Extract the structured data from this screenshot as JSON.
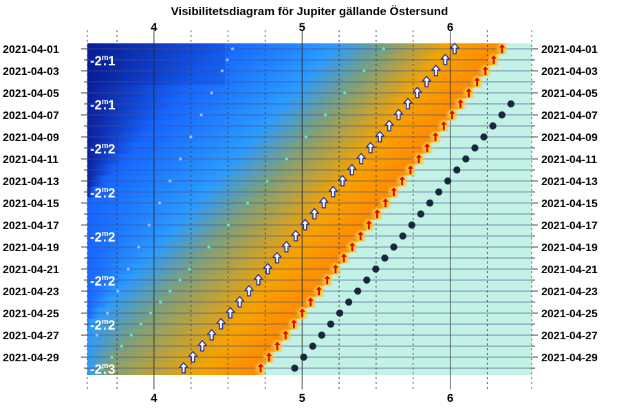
{
  "chart_data": {
    "type": "scatter",
    "title": "Visibilitetsdiagram för Jupiter gällande Östersund",
    "xlabel": "",
    "ylabel": "",
    "x_unit": "hours (local time)",
    "xlim": [
      3.55,
      6.55
    ],
    "x_ticks": [
      {
        "value": 4,
        "label": "4"
      },
      {
        "value": 5,
        "label": "5"
      },
      {
        "value": 6,
        "label": "6"
      }
    ],
    "minor_grid_hours": [
      3.75,
      4.25,
      4.5,
      4.75,
      5.25,
      5.5,
      5.75,
      6.25
    ],
    "dates": [
      "2021-04-01",
      "2021-04-02",
      "2021-04-03",
      "2021-04-04",
      "2021-04-05",
      "2021-04-06",
      "2021-04-07",
      "2021-04-08",
      "2021-04-09",
      "2021-04-10",
      "2021-04-11",
      "2021-04-12",
      "2021-04-13",
      "2021-04-14",
      "2021-04-15",
      "2021-04-16",
      "2021-04-17",
      "2021-04-18",
      "2021-04-19",
      "2021-04-20",
      "2021-04-21",
      "2021-04-22",
      "2021-04-23",
      "2021-04-24",
      "2021-04-25",
      "2021-04-26",
      "2021-04-27",
      "2021-04-28",
      "2021-04-29",
      "2021-04-30"
    ],
    "date_labels": [
      "2021-04-01",
      "2021-04-03",
      "2021-04-05",
      "2021-04-07",
      "2021-04-09",
      "2021-04-11",
      "2021-04-13",
      "2021-04-15",
      "2021-04-17",
      "2021-04-19",
      "2021-04-21",
      "2021-04-23",
      "2021-04-25",
      "2021-04-27",
      "2021-04-29"
    ],
    "magnitudes": [
      {
        "date": "2021-04-02",
        "text": "-2.1"
      },
      {
        "date": "2021-04-06",
        "text": "-2.1"
      },
      {
        "date": "2021-04-10",
        "text": "-2.2"
      },
      {
        "date": "2021-04-14",
        "text": "-2.2"
      },
      {
        "date": "2021-04-18",
        "text": "-2.2"
      },
      {
        "date": "2021-04-22",
        "text": "-2.2"
      },
      {
        "date": "2021-04-26",
        "text": "-2.2"
      },
      {
        "date": "2021-04-30",
        "text": "-2.3"
      }
    ],
    "series": [
      {
        "symbol": "dot-small",
        "x": [
          4.53,
          3.51
        ],
        "date_index": [
          0,
          29
        ]
      },
      {
        "symbol": "dot-cyan",
        "x": [
          5.55,
          3.65
        ],
        "date_index": [
          0,
          29
        ]
      },
      {
        "symbol": "arrow-white",
        "x": [
          6.03,
          4.2
        ],
        "date_index": [
          0,
          29
        ]
      },
      {
        "symbol": "arrow-red",
        "x": [
          6.35,
          4.72
        ],
        "date_index": [
          0,
          29
        ]
      },
      {
        "symbol": "dot-dark",
        "x": [
          6.41,
          4.95
        ],
        "date_index": [
          5,
          29
        ]
      }
    ],
    "colors": {
      "night_dark": "#0a1f9c",
      "night": "#1565ff",
      "twilight_blue": "#2a9bff",
      "twilight_mid": "#7ea07a",
      "twilight_orange": "#f5a300",
      "dawn_orange": "#ff8a00",
      "day": "#c2f2e6",
      "row_line": "#4b4b8a",
      "white_arrow_fill": "#ffffff",
      "white_arrow_edge": "#1f2f9e",
      "red_arrow": "#e00000",
      "dark_dot": "#1a2540",
      "cyan_dot": "#5ee6d8",
      "light_dot": "#a8b8ff"
    }
  }
}
